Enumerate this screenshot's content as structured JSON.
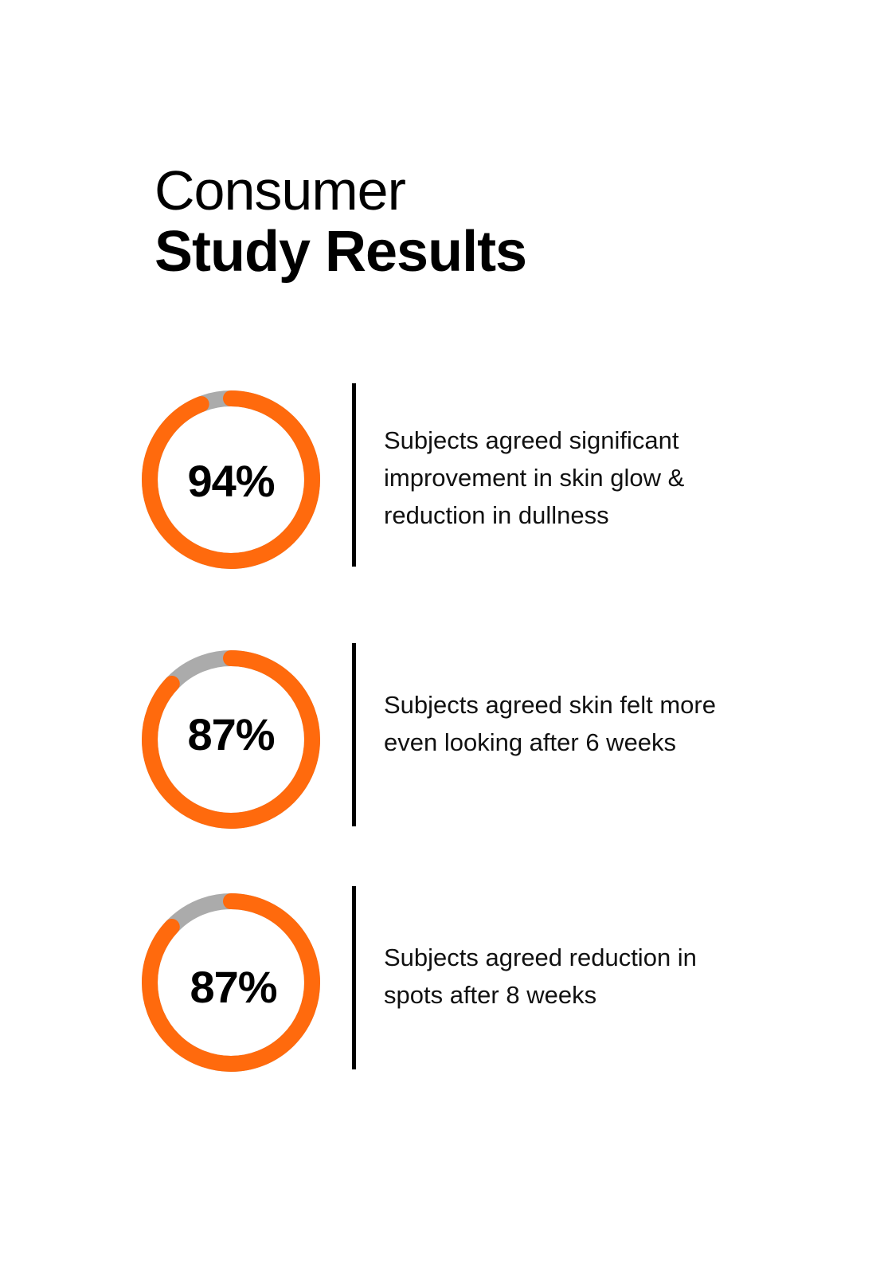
{
  "title": {
    "line1": "Consumer",
    "line2": "Study Results"
  },
  "colors": {
    "accent": "#FF6A0D",
    "track": "#ABABAB",
    "text": "#000000"
  },
  "chart_data": {
    "type": "donut",
    "title": "Consumer Study Results",
    "items": [
      {
        "label": "94%",
        "value": 94,
        "description": "Subjects agreed significant improvement in skin glow & reduction in dullness"
      },
      {
        "label": "87%",
        "value": 87,
        "description": "Subjects agreed skin felt more even looking after 6 weeks"
      },
      {
        "label": "87%",
        "value": 87,
        "description": "Subjects agreed reduction in spots after 8 weeks"
      }
    ]
  }
}
